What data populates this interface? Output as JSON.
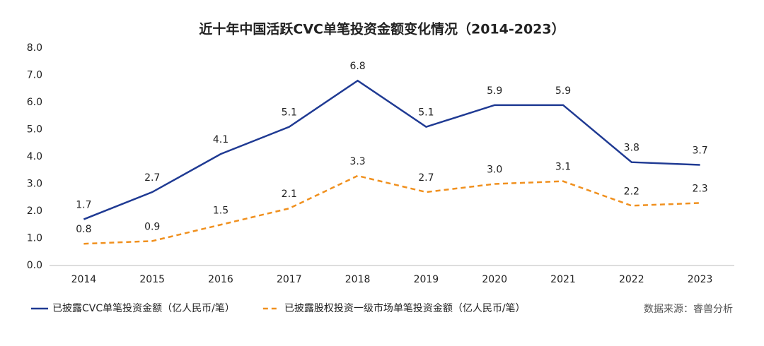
{
  "chart_data": {
    "type": "line",
    "title": "近十年中国活跃CVC单笔投资金额变化情况（2014-2023）",
    "categories": [
      "2014",
      "2015",
      "2016",
      "2017",
      "2018",
      "2019",
      "2020",
      "2021",
      "2022",
      "2023"
    ],
    "series": [
      {
        "name": "已披露CVC单笔投资金额（亿人民币/笔）",
        "color": "#1f3a93",
        "dashed": false,
        "values": [
          1.7,
          2.7,
          4.1,
          5.1,
          6.8,
          5.1,
          5.9,
          5.9,
          3.8,
          3.7
        ],
        "value_labels": [
          "1.7",
          "2.7",
          "4.1",
          "5.1",
          "6.8",
          "5.1",
          "5.9",
          "5.9",
          "3.8",
          "3.7"
        ]
      },
      {
        "name": "已披露股权投资一级市场单笔投资金额（亿人民币/笔）",
        "color": "#f0901e",
        "dashed": true,
        "values": [
          0.8,
          0.9,
          1.5,
          2.1,
          3.3,
          2.7,
          3.0,
          3.1,
          2.2,
          2.3
        ],
        "value_labels": [
          "0.8",
          "0.9",
          "1.5",
          "2.1",
          "3.3",
          "2.7",
          "3.0",
          "3.1",
          "2.2",
          "2.3"
        ]
      }
    ],
    "ylim": [
      0,
      8
    ],
    "yticks": [
      {
        "value": 0,
        "label": "0.0"
      },
      {
        "value": 1,
        "label": "1.0"
      },
      {
        "value": 2,
        "label": "2.0"
      },
      {
        "value": 3,
        "label": "3.0"
      },
      {
        "value": 4,
        "label": "4.0"
      },
      {
        "value": 5,
        "label": "5.0"
      },
      {
        "value": 6,
        "label": "6.0"
      },
      {
        "value": 7,
        "label": "7.0"
      },
      {
        "value": 8,
        "label": "8.0"
      }
    ],
    "grid": false,
    "source": "数据来源：睿兽分析"
  }
}
